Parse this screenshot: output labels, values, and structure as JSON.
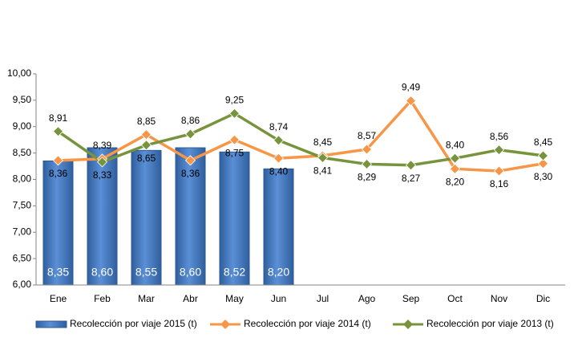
{
  "chart_data": {
    "type": "bar-line",
    "categories": [
      "Ene",
      "Feb",
      "Mar",
      "Abr",
      "May",
      "Jun",
      "Jul",
      "Ago",
      "Sep",
      "Oct",
      "Nov",
      "Dic"
    ],
    "series": [
      {
        "name": "Recolección por viaje 2015 (t)",
        "type": "bar",
        "color": "#4a7ebb",
        "values": [
          8.35,
          8.6,
          8.55,
          8.6,
          8.52,
          8.2,
          null,
          null,
          null,
          null,
          null,
          null
        ],
        "value_labels": [
          "8,35",
          "8,60",
          "8,55",
          "8,60",
          "8,52",
          "8,20",
          null,
          null,
          null,
          null,
          null,
          null
        ]
      },
      {
        "name": "Recolección por viaje 2014 (t)",
        "type": "line",
        "color": "#f79646",
        "values": [
          8.36,
          8.39,
          8.85,
          8.36,
          8.75,
          8.4,
          8.45,
          8.57,
          9.49,
          8.2,
          8.16,
          8.3
        ],
        "value_labels": [
          "8,36",
          "8,39",
          "8,85",
          "8,36",
          "8,75",
          "8,40",
          "8,45",
          "8,57",
          "9,49",
          "8,20",
          "8,16",
          "8,30"
        ]
      },
      {
        "name": "Recolección por viaje 2013 (t)",
        "type": "line",
        "color": "#77933c",
        "values": [
          8.91,
          8.33,
          8.65,
          8.86,
          9.25,
          8.74,
          8.41,
          8.29,
          8.27,
          8.4,
          8.56,
          8.45
        ],
        "value_labels": [
          "8,91",
          "8,33",
          "8,65",
          "8,86",
          "9,25",
          "8,74",
          "8,41",
          "8,29",
          "8,27",
          "8,40",
          "8,56",
          "8,45"
        ]
      }
    ],
    "ylim": [
      6,
      10
    ],
    "yticks": [
      {
        "value": 6,
        "label": "6,00"
      },
      {
        "value": 6.5,
        "label": "6,50"
      },
      {
        "value": 7,
        "label": "7,00"
      },
      {
        "value": 7.5,
        "label": "7,50"
      },
      {
        "value": 8,
        "label": "8,00"
      },
      {
        "value": 8.5,
        "label": "8,50"
      },
      {
        "value": 9,
        "label": "9,00"
      },
      {
        "value": 9.5,
        "label": "9,50"
      },
      {
        "value": 10,
        "label": "10,00"
      }
    ],
    "grid": false,
    "legend": "bottom"
  }
}
